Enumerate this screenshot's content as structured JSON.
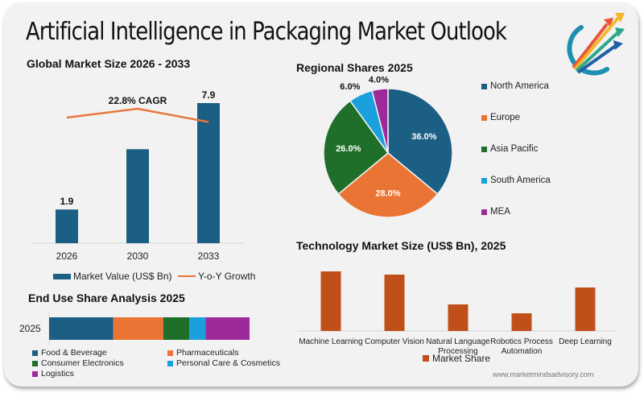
{
  "header": {
    "title": "Artificial Intelligence in Packaging Market Outlook",
    "logo_icon": "rising-arrows-logo-icon"
  },
  "colors": {
    "navy": "#1b5f84",
    "orange": "#ea7434",
    "green": "#1f6e2a",
    "lightblue": "#1aa0dc",
    "purple": "#9c2a9a",
    "rust": "#c0501a",
    "line": "#e8773e"
  },
  "footer": {
    "website": "www.marketmindsadvisory.com"
  },
  "chart_data": [
    {
      "id": "global",
      "type": "bar",
      "title": "Global Market Size 2026 - 2033",
      "categories": [
        "2026",
        "2030",
        "2033"
      ],
      "series": [
        {
          "name": "Market Value (US$ Bn)",
          "kind": "bar",
          "values": [
            1.9,
            5.3,
            7.9
          ],
          "labels": [
            "1.9",
            "",
            "7.9"
          ]
        },
        {
          "name": "Y-o-Y Growth",
          "kind": "line",
          "values": [
            0.5,
            0.6,
            0.45
          ]
        }
      ],
      "annotation": "22.8% CAGR",
      "xlabel": "",
      "ylabel": "",
      "ylim": [
        0,
        8
      ],
      "grid": false,
      "legend": "bottom"
    },
    {
      "id": "regional",
      "type": "pie",
      "title": "Regional Shares 2025",
      "categories": [
        "North America",
        "Europe",
        "Asia Pacific",
        "South America",
        "MEA"
      ],
      "values": [
        36.0,
        28.0,
        26.0,
        6.0,
        4.0
      ],
      "labels": [
        "36.0%",
        "28.0%",
        "26.0%",
        "6.0%",
        "4.0%"
      ],
      "legend": "right"
    },
    {
      "id": "enduse",
      "type": "bar",
      "orientation": "horizontal-stacked",
      "title": "End Use Share Analysis 2025",
      "categories": [
        "2025"
      ],
      "series": [
        {
          "name": "Food & Beverage",
          "values": [
            32
          ]
        },
        {
          "name": "Pharmaceuticals",
          "values": [
            25
          ]
        },
        {
          "name": "Consumer Electronics",
          "values": [
            13
          ]
        },
        {
          "name": "Personal Care & Cosmetics",
          "values": [
            8
          ]
        },
        {
          "name": "Logistics",
          "values": [
            22
          ]
        }
      ],
      "legend": "bottom"
    },
    {
      "id": "technology",
      "type": "bar",
      "title": "Technology Market Size (US$ Bn), 2025",
      "categories": [
        "Machine Learning",
        "Computer Vision",
        "Natural Language Processing",
        "Robotics Process Automation",
        "Deep Learning"
      ],
      "category_lines": [
        [
          "Machine Learning"
        ],
        [
          "Computer Vision"
        ],
        [
          "Natural Language",
          "Processing"
        ],
        [
          "Robotics Process",
          "Automation"
        ],
        [
          "Deep Learning"
        ]
      ],
      "series": [
        {
          "name": "Market Share",
          "values": [
            74,
            70,
            33,
            22,
            54
          ]
        }
      ],
      "legend": "bottom"
    }
  ]
}
